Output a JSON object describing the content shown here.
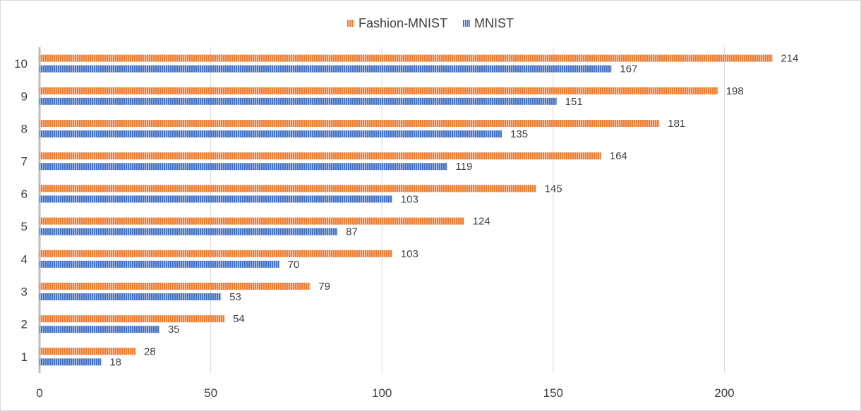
{
  "chart_data": {
    "type": "bar",
    "orientation": "horizontal",
    "categories": [
      "1",
      "2",
      "3",
      "4",
      "5",
      "6",
      "7",
      "8",
      "9",
      "10"
    ],
    "series": [
      {
        "name": "Fashion-MNIST",
        "color": "#ED7D31",
        "values": [
          28,
          54,
          79,
          103,
          124,
          145,
          164,
          181,
          198,
          214
        ]
      },
      {
        "name": "MNIST",
        "color": "#4472C4",
        "values": [
          18,
          35,
          53,
          70,
          87,
          103,
          119,
          135,
          151,
          167
        ]
      }
    ],
    "x_ticks": [
      "0",
      "50",
      "100",
      "150",
      "200"
    ],
    "xlim": [
      0,
      230
    ],
    "grid": true,
    "legend_position": "top"
  },
  "legend": {
    "items": [
      {
        "label": "Fashion-MNIST",
        "color": "#ED7D31"
      },
      {
        "label": "MNIST",
        "color": "#4472C4"
      }
    ]
  }
}
